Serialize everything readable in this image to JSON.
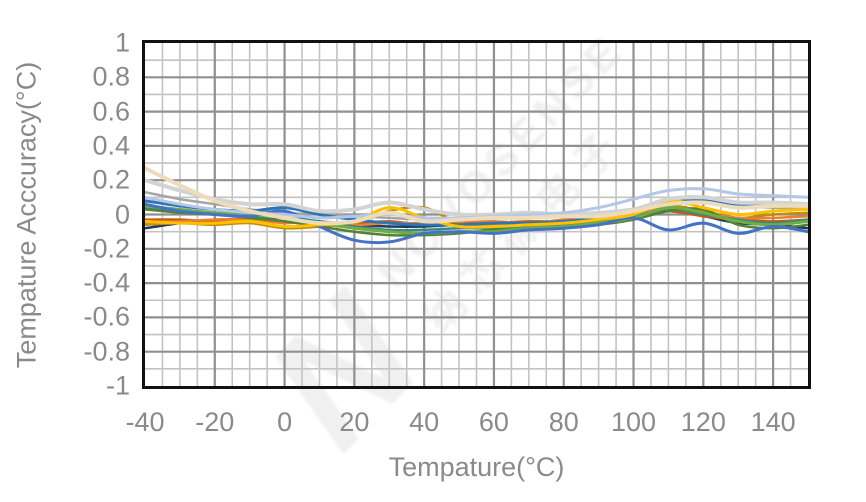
{
  "watermark": {
    "logo_letter": "N",
    "line1": "NOVOSENSE",
    "line2": "纳芯微电子"
  },
  "colors": {
    "axis_text": "#8a8a8a",
    "plot_border": "#111111",
    "major_grid": "#8f8f8f",
    "minor_grid": "#c3c3c3",
    "background": "#ffffff"
  },
  "chart_data": {
    "type": "line",
    "title": "",
    "xlabel": "Tempature(°C)",
    "ylabel": "Tempature Acccuracy(°C)",
    "xlim": [
      -40,
      150
    ],
    "ylim": [
      -1,
      1
    ],
    "x_major_ticks": [
      "-40",
      "-20",
      "0",
      "20",
      "40",
      "60",
      "80",
      "100",
      "120",
      "140"
    ],
    "y_major_ticks": [
      "1",
      "0.8",
      "0.6",
      "0.4",
      "0.2",
      "0",
      "-0.2",
      "-0.4",
      "-0.6",
      "-0.8",
      "-1"
    ],
    "x_minor_step": 5,
    "y_minor_step": 0.1,
    "grid": "major and minor, both axes",
    "legend": "none",
    "x": [
      -40,
      -30,
      -20,
      -10,
      0,
      10,
      20,
      30,
      40,
      50,
      60,
      70,
      80,
      90,
      100,
      110,
      120,
      130,
      140,
      150
    ],
    "series": [
      {
        "name": "unit-navy",
        "color": "#203864",
        "width": 2.5,
        "values": [
          -0.08,
          -0.05,
          -0.03,
          -0.03,
          -0.02,
          -0.05,
          -0.06,
          -0.07,
          -0.07,
          -0.06,
          -0.06,
          -0.05,
          -0.05,
          -0.04,
          -0.01,
          0.02,
          -0.01,
          -0.05,
          -0.06,
          -0.08
        ]
      },
      {
        "name": "unit-brown",
        "color": "#C55A11",
        "width": 2.5,
        "values": [
          -0.03,
          -0.03,
          -0.04,
          -0.02,
          -0.04,
          -0.05,
          -0.05,
          -0.04,
          -0.06,
          -0.05,
          -0.05,
          -0.04,
          -0.04,
          -0.03,
          0.0,
          0.02,
          -0.01,
          -0.03,
          -0.04,
          -0.03
        ]
      },
      {
        "name": "unit-dark-gold",
        "color": "#BF8F00",
        "width": 2.5,
        "values": [
          -0.06,
          -0.05,
          -0.06,
          -0.05,
          -0.08,
          -0.07,
          -0.05,
          0.02,
          0.04,
          -0.05,
          -0.06,
          -0.06,
          -0.06,
          -0.04,
          -0.01,
          0.05,
          0.02,
          -0.02,
          0.0,
          0.01
        ]
      },
      {
        "name": "unit-orange",
        "color": "#ED7D31",
        "width": 2.5,
        "values": [
          -0.05,
          -0.04,
          -0.03,
          -0.03,
          -0.05,
          -0.04,
          -0.06,
          -0.05,
          -0.05,
          -0.04,
          -0.04,
          -0.05,
          -0.03,
          -0.02,
          0.01,
          0.03,
          0.01,
          -0.02,
          -0.02,
          -0.01
        ]
      },
      {
        "name": "unit-teal",
        "color": "#3A8A7E",
        "width": 2.5,
        "values": [
          0.04,
          0.02,
          0.0,
          -0.01,
          -0.02,
          -0.04,
          -0.07,
          -0.09,
          -0.09,
          -0.08,
          -0.08,
          -0.07,
          -0.06,
          -0.04,
          -0.01,
          0.03,
          0.0,
          -0.03,
          -0.05,
          -0.03
        ]
      },
      {
        "name": "unit-dark-green",
        "color": "#538135",
        "width": 2.5,
        "values": [
          0.03,
          0.01,
          0.0,
          -0.02,
          -0.04,
          -0.07,
          -0.1,
          -0.12,
          -0.12,
          -0.11,
          -0.09,
          -0.09,
          -0.08,
          -0.06,
          -0.03,
          0.02,
          0.03,
          -0.06,
          -0.08,
          -0.06
        ]
      },
      {
        "name": "unit-green",
        "color": "#70AD47",
        "width": 3,
        "values": [
          0.05,
          0.03,
          0.01,
          0.0,
          -0.02,
          -0.05,
          -0.08,
          -0.1,
          -0.11,
          -0.1,
          -0.1,
          -0.08,
          -0.07,
          -0.05,
          -0.02,
          0.04,
          0.01,
          -0.04,
          -0.06,
          -0.04
        ]
      },
      {
        "name": "unit-gray",
        "color": "#A5A5A5",
        "width": 2.5,
        "values": [
          0.13,
          0.09,
          0.06,
          0.03,
          0.01,
          0.0,
          -0.01,
          -0.02,
          -0.03,
          -0.03,
          -0.02,
          -0.02,
          -0.01,
          0.0,
          0.02,
          0.07,
          0.08,
          0.05,
          0.04,
          0.04
        ]
      },
      {
        "name": "unit-steel-blue",
        "color": "#2E75B6",
        "width": 3,
        "values": [
          0.08,
          0.05,
          0.03,
          0.02,
          0.04,
          0.0,
          -0.03,
          -0.05,
          -0.06,
          -0.06,
          -0.05,
          -0.05,
          -0.04,
          -0.02,
          0.02,
          0.07,
          0.08,
          0.05,
          0.07,
          0.06
        ]
      },
      {
        "name": "unit-blue",
        "color": "#4472C4",
        "width": 3,
        "values": [
          0.06,
          0.02,
          0.0,
          -0.01,
          0.02,
          -0.07,
          -0.15,
          -0.16,
          -0.11,
          -0.1,
          -0.11,
          -0.09,
          -0.08,
          -0.06,
          -0.02,
          -0.09,
          -0.05,
          -0.11,
          -0.07,
          -0.1
        ]
      },
      {
        "name": "unit-gold",
        "color": "#FFC000",
        "width": 3,
        "values": [
          -0.04,
          -0.05,
          -0.05,
          -0.04,
          -0.07,
          -0.06,
          -0.04,
          0.04,
          -0.02,
          -0.07,
          -0.07,
          -0.06,
          -0.05,
          -0.03,
          0.0,
          0.08,
          0.04,
          0.0,
          0.02,
          0.03
        ]
      },
      {
        "name": "unit-light-gray",
        "color": "#D3D3D3",
        "width": 4,
        "values": [
          0.2,
          0.14,
          0.09,
          0.06,
          0.06,
          0.02,
          0.03,
          0.07,
          0.03,
          0.0,
          0.0,
          0.01,
          0.0,
          0.01,
          0.03,
          0.09,
          0.1,
          0.07,
          0.07,
          0.06
        ]
      },
      {
        "name": "unit-periwinkle",
        "color": "#B4C7E7",
        "width": 3,
        "values": [
          0.1,
          0.06,
          0.03,
          0.01,
          0.0,
          -0.02,
          -0.01,
          0.0,
          -0.02,
          -0.02,
          -0.01,
          0.0,
          0.01,
          0.04,
          0.09,
          0.14,
          0.15,
          0.12,
          0.11,
          0.1
        ]
      },
      {
        "name": "unit-cream",
        "color": "#EDDCBA",
        "width": 4,
        "values": [
          0.27,
          0.17,
          0.08,
          0.02,
          -0.02,
          -0.05,
          -0.04,
          0.01,
          -0.04,
          -0.03,
          -0.02,
          -0.02,
          -0.01,
          -0.01,
          0.02,
          0.06,
          0.07,
          0.04,
          0.05,
          0.05
        ]
      }
    ]
  }
}
